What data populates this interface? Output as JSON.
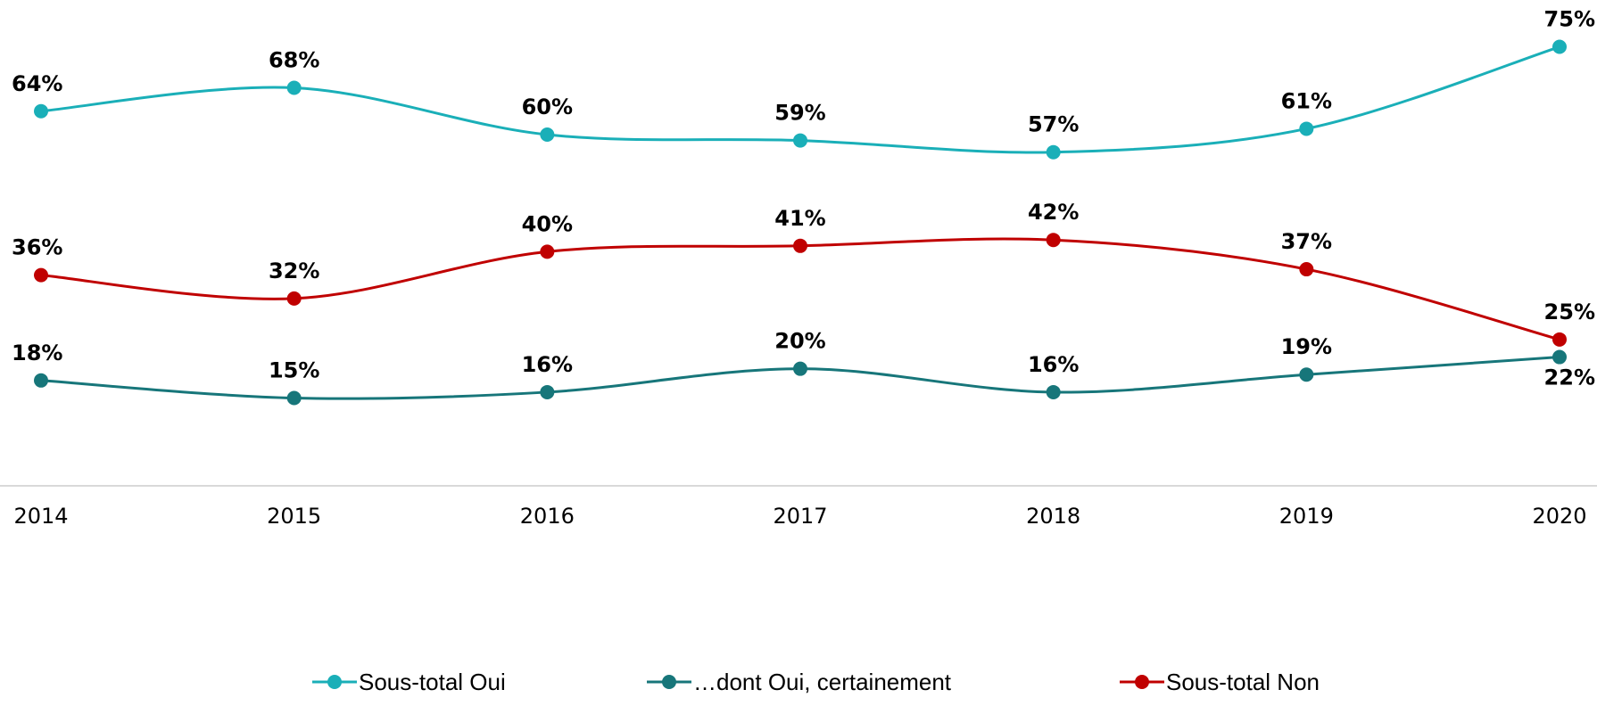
{
  "chart_data": {
    "type": "line",
    "categories": [
      "2014",
      "2015",
      "2016",
      "2017",
      "2018",
      "2019",
      "2020"
    ],
    "series": [
      {
        "name": "Sous-total Oui",
        "color": "#1aafb8",
        "values": [
          64,
          68,
          60,
          59,
          57,
          61,
          75
        ],
        "value_labels": [
          "64%",
          "68%",
          "60%",
          "59%",
          "57%",
          "61%",
          "75%"
        ]
      },
      {
        "name": "…dont Oui, certainement",
        "color": "#17767a",
        "values": [
          18,
          15,
          16,
          20,
          16,
          19,
          22
        ],
        "value_labels": [
          "18%",
          "15%",
          "16%",
          "20%",
          "16%",
          "19%",
          "22%"
        ]
      },
      {
        "name": "Sous-total Non",
        "color": "#c00000",
        "values": [
          36,
          32,
          40,
          41,
          42,
          37,
          25
        ],
        "value_labels": [
          "36%",
          "32%",
          "40%",
          "41%",
          "42%",
          "37%",
          "25%"
        ]
      }
    ],
    "ylim": [
      0,
      83
    ],
    "legend": "bottom"
  }
}
